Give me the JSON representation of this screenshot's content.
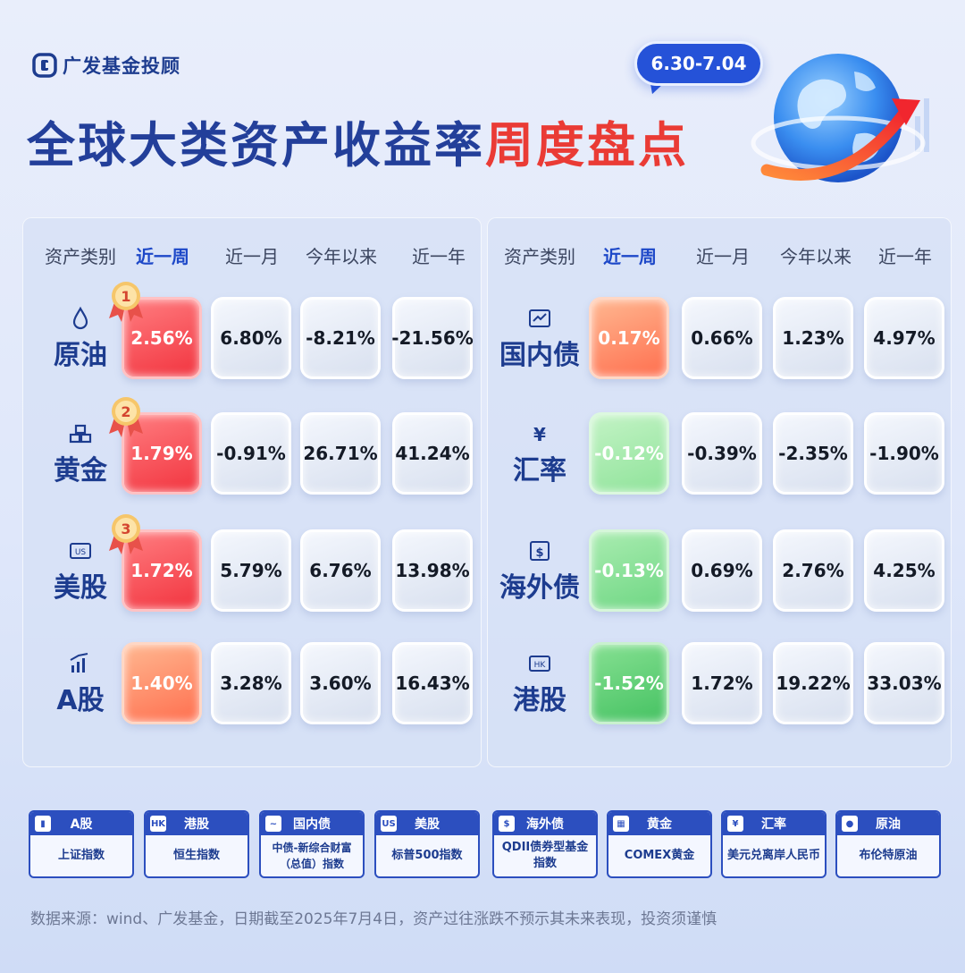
{
  "brand": {
    "name": "广发基金投顾"
  },
  "header": {
    "title_main": "全球大类资产收益率",
    "title_accent": "周度盘点",
    "date_range": "6.30-7.04"
  },
  "colors": {
    "brand_blue": "#233f9a",
    "accent_red": "#ea3b35",
    "bubble_blue": "#2552d8"
  },
  "left_panel": {
    "headers": [
      "资产类别",
      "近一周",
      "近一月",
      "今年以来",
      "近一年"
    ],
    "rows": [
      {
        "name": "原油",
        "icon": "droplet-icon",
        "rank": "1",
        "values": [
          "2.56%",
          "6.80%",
          "-8.21%",
          "-21.56%"
        ]
      },
      {
        "name": "黄金",
        "icon": "gold-bars-icon",
        "rank": "2",
        "values": [
          "1.79%",
          "-0.91%",
          "26.71%",
          "41.24%"
        ]
      },
      {
        "name": "美股",
        "icon": "us-badge-icon",
        "icon_text": "US",
        "rank": "3",
        "values": [
          "1.72%",
          "5.79%",
          "6.76%",
          "13.98%"
        ]
      },
      {
        "name": "A股",
        "icon": "bar-chart-icon",
        "values": [
          "1.40%",
          "3.28%",
          "3.60%",
          "16.43%"
        ]
      }
    ]
  },
  "right_panel": {
    "headers": [
      "资产类别",
      "近一周",
      "近一月",
      "今年以来",
      "近一年"
    ],
    "rows": [
      {
        "name": "国内债",
        "icon": "bond-chart-icon",
        "values": [
          "0.17%",
          "0.66%",
          "1.23%",
          "4.97%"
        ]
      },
      {
        "name": "汇率",
        "icon": "yen-icon",
        "icon_text": "¥",
        "values": [
          "-0.12%",
          "-0.39%",
          "-2.35%",
          "-1.90%"
        ]
      },
      {
        "name": "海外债",
        "icon": "dollar-bill-icon",
        "icon_text": "$",
        "values": [
          "-0.13%",
          "0.69%",
          "2.76%",
          "4.25%"
        ]
      },
      {
        "name": "港股",
        "icon": "hk-badge-icon",
        "icon_text": "HK",
        "values": [
          "-1.52%",
          "1.72%",
          "19.22%",
          "33.03%"
        ]
      }
    ]
  },
  "legend": [
    {
      "name": "A股",
      "desc": "上证指数",
      "icon": "bar-chart-icon",
      "icon_text": ""
    },
    {
      "name": "港股",
      "desc": "恒生指数",
      "icon": "hk-badge-icon",
      "icon_text": "HK"
    },
    {
      "name": "国内债",
      "desc": "中债-新综合财富（总值）指数",
      "icon": "bond-chart-icon",
      "icon_text": ""
    },
    {
      "name": "美股",
      "desc": "标普500指数",
      "icon": "us-badge-icon",
      "icon_text": "US"
    },
    {
      "name": "海外债",
      "desc": "QDII债券型基金指数",
      "icon": "dollar-bill-icon",
      "icon_text": "$"
    },
    {
      "name": "黄金",
      "desc": "COMEX黄金",
      "icon": "gold-bars-icon",
      "icon_text": ""
    },
    {
      "name": "汇率",
      "desc": "美元兑离岸人民币",
      "icon": "yen-icon",
      "icon_text": "¥"
    },
    {
      "name": "原油",
      "desc": "布伦特原油",
      "icon": "droplet-icon",
      "icon_text": ""
    }
  ],
  "footer": {
    "source": "数据来源：wind、广发基金，日期截至2025年7月4日，资产过往涨跌不预示其未来表现，投资须谨慎"
  }
}
